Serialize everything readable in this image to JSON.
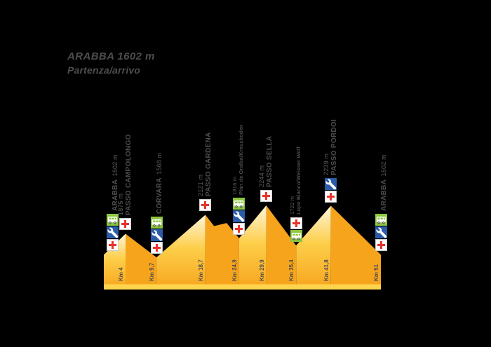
{
  "title": {
    "line1": "ARABBA 1602 m",
    "line2": "Partenza/arrivo"
  },
  "colors": {
    "background": "#000000",
    "orange": "#F7A41D",
    "gradient_top": "#FFF6DA",
    "gradient_mid": "#FDCE49",
    "base_strip": "#FFD44D",
    "label_text": "#4D4D4D",
    "icon_green": "#8DC63F",
    "icon_blue": "#2B5CA8",
    "icon_red": "#E8342C"
  },
  "icon_legend": {
    "bus": "shuttle-bus-stop",
    "wrench": "bike-service",
    "cross": "first-aid"
  },
  "chart_data": {
    "type": "area",
    "title": "ARABBA 1602 m",
    "subtitle": "Partenza/arrivo",
    "xlabel": "Km",
    "ylabel": "m",
    "x_range": [
      0,
      51
    ],
    "elev_range": [
      1150,
      2244
    ],
    "waypoints": [
      {
        "km": 0,
        "elev": 1602,
        "name": "ARABBA",
        "elev_label": "1602 m",
        "km_label": null,
        "icons": [
          "bus",
          "wrench",
          "cross"
        ],
        "small": false,
        "single_line": true
      },
      {
        "km": 4,
        "elev": 1875,
        "name": "PASSO CAMPOLONGO",
        "elev_label": "1875 m",
        "km_label": "Km 4",
        "icons": [
          "cross"
        ],
        "small": false,
        "single_line": false
      },
      {
        "km": 9.7,
        "elev": 1568,
        "name": "CORVARA",
        "elev_label": "1568 m",
        "km_label": "Km 9,7",
        "icons": [
          "bus",
          "wrench",
          "cross"
        ],
        "small": false,
        "single_line": true
      },
      {
        "km": 18.7,
        "elev": 2121,
        "name": "PASSO GARDENA",
        "elev_label": "2121 m",
        "km_label": "Km 18,7",
        "icons": [
          "cross"
        ],
        "small": false,
        "single_line": false
      },
      {
        "km": 20.3,
        "elev": 1975,
        "shape_only": true
      },
      {
        "km": 22.6,
        "elev": 2015,
        "shape_only": true
      },
      {
        "km": 24.9,
        "elev": 1816,
        "name": "Plan de Gralba/Kreuzboden",
        "elev_label": "1816 m",
        "km_label": "Km 24,9",
        "icons": [
          "bus",
          "wrench",
          "cross"
        ],
        "small": true,
        "single_line": false
      },
      {
        "km": 29.9,
        "elev": 2244,
        "name": "PASSO SELLA",
        "elev_label": "2244 m",
        "km_label": "Km 29,9",
        "icons": [
          "cross"
        ],
        "small": false,
        "single_line": false
      },
      {
        "km": 35.4,
        "elev": 1722,
        "name": "Lupo Bianco/Weisser Wolf",
        "elev_label": "1722 m",
        "km_label": "Km 35,4",
        "icons": [
          "cross",
          "bus"
        ],
        "small": true,
        "single_line": false
      },
      {
        "km": 41.8,
        "elev": 2239,
        "name": "PASSO PORDOI",
        "elev_label": "2239 m",
        "km_label": "Km 41,8",
        "icons": [
          "wrench",
          "cross"
        ],
        "small": false,
        "single_line": false
      },
      {
        "km": 51,
        "elev": 1602,
        "name": "ARABBA",
        "elev_label": "1602 m",
        "km_label": "Km 51",
        "icons": [
          "bus",
          "wrench",
          "cross"
        ],
        "small": false,
        "single_line": true
      }
    ]
  }
}
